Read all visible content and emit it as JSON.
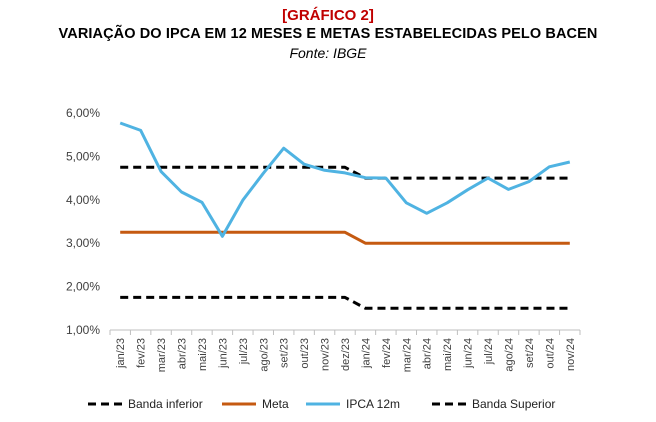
{
  "header": {
    "tag": "[GRÁFICO 2]",
    "title": "VARIAÇÃO DO IPCA EM 12 MESES E METAS ESTABELECIDAS PELO BACEN",
    "source": "Fonte: IBGE"
  },
  "chart_data": {
    "type": "line",
    "title": "VARIAÇÃO DO IPCA EM 12 MESES E METAS ESTABELECIDAS PELO BACEN",
    "x": [
      "jan/23",
      "fev/23",
      "mar/23",
      "abr/23",
      "mai/23",
      "jun/23",
      "jul/23",
      "ago/23",
      "set/23",
      "out/23",
      "nov/23",
      "dez/23",
      "jan/24",
      "fev/24",
      "mar/24",
      "abr/24",
      "mai/24",
      "jun/24",
      "jul/24",
      "ago/24",
      "set/24",
      "out/24",
      "nov/24"
    ],
    "ylim": [
      1.0,
      6.0
    ],
    "yticks": [
      1.0,
      2.0,
      3.0,
      4.0,
      5.0,
      6.0
    ],
    "ytick_labels": [
      "1,00%",
      "2,00%",
      "3,00%",
      "4,00%",
      "5,00%",
      "6,00%"
    ],
    "grid": false,
    "legend_position": "bottom",
    "series": [
      {
        "name": "Banda inferior",
        "color": "#000000",
        "dash": true,
        "values": [
          1.75,
          1.75,
          1.75,
          1.75,
          1.75,
          1.75,
          1.75,
          1.75,
          1.75,
          1.75,
          1.75,
          1.75,
          1.5,
          1.5,
          1.5,
          1.5,
          1.5,
          1.5,
          1.5,
          1.5,
          1.5,
          1.5,
          1.5
        ]
      },
      {
        "name": "Meta",
        "color": "#c55a11",
        "dash": false,
        "values": [
          3.25,
          3.25,
          3.25,
          3.25,
          3.25,
          3.25,
          3.25,
          3.25,
          3.25,
          3.25,
          3.25,
          3.25,
          3.0,
          3.0,
          3.0,
          3.0,
          3.0,
          3.0,
          3.0,
          3.0,
          3.0,
          3.0,
          3.0
        ]
      },
      {
        "name": "IPCA 12m",
        "color": "#4fb3e2",
        "dash": false,
        "values": [
          5.77,
          5.6,
          4.65,
          4.18,
          3.94,
          3.16,
          3.99,
          4.61,
          5.19,
          4.82,
          4.68,
          4.62,
          4.51,
          4.5,
          3.93,
          3.69,
          3.93,
          4.23,
          4.5,
          4.24,
          4.42,
          4.76,
          4.87
        ]
      },
      {
        "name": "Banda Superior",
        "color": "#000000",
        "dash": true,
        "values": [
          4.75,
          4.75,
          4.75,
          4.75,
          4.75,
          4.75,
          4.75,
          4.75,
          4.75,
          4.75,
          4.75,
          4.75,
          4.5,
          4.5,
          4.5,
          4.5,
          4.5,
          4.5,
          4.5,
          4.5,
          4.5,
          4.5,
          4.5
        ]
      }
    ]
  }
}
